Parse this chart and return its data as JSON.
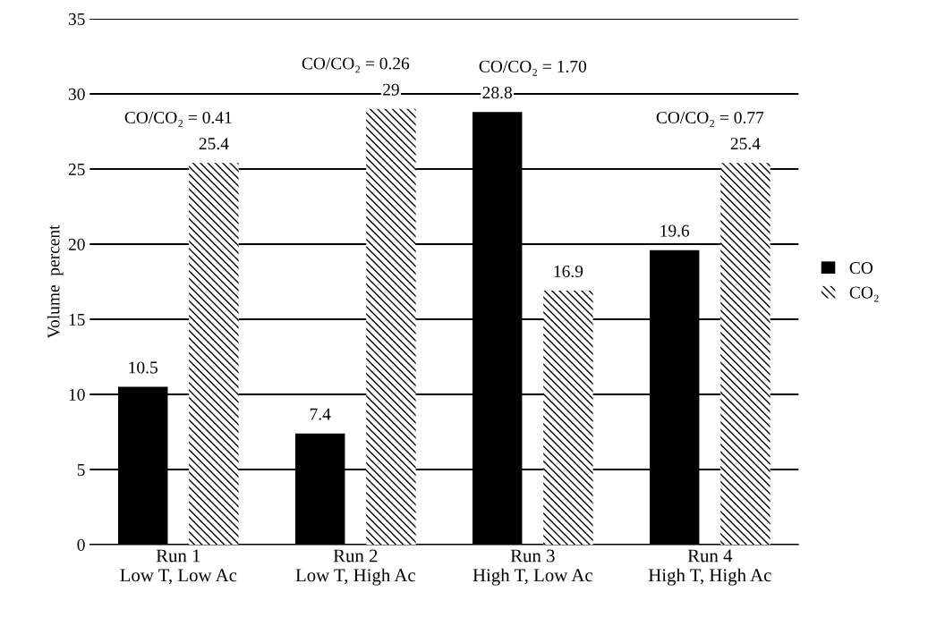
{
  "chart_data": {
    "type": "bar",
    "ylabel": "Volume  percent",
    "categories": [
      "Run 1\nLow T, Low Ac",
      "Run 2\nLow T, High Ac",
      "Run 3\nHigh T, Low Ac",
      "Run 4\nHigh T, High Ac"
    ],
    "series": [
      {
        "name": "CO",
        "color": "#000000",
        "values": [
          10.5,
          7.4,
          28.8,
          19.6
        ]
      },
      {
        "name": "CO₂",
        "color": "#000000",
        "values": [
          25.4,
          29,
          16.9,
          25.4
        ]
      }
    ],
    "ylim": [
      0,
      35
    ],
    "yticks": [
      0,
      5,
      10,
      15,
      20,
      25,
      30,
      35
    ],
    "grid": "y",
    "legend": "right",
    "data_labels": true,
    "annotations": [
      "CO/CO₂ = 0.41",
      "CO/CO₂ = 0.26",
      "CO/CO₂ = 1.70",
      "CO/CO₂ = 0.77"
    ]
  }
}
